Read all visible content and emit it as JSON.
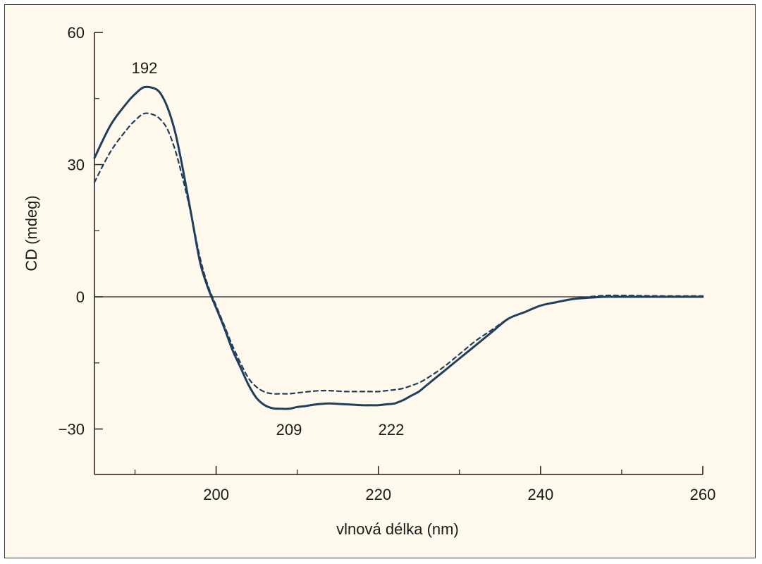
{
  "chart_data": {
    "type": "line",
    "title": "",
    "xlabel": "vlnová délka (nm)",
    "ylabel": "CD (mdeg)",
    "xlim": [
      185,
      260
    ],
    "ylim": [
      -40,
      60
    ],
    "x_ticks": [
      200,
      220,
      240,
      260
    ],
    "x_minor_ticks": [
      190,
      210,
      230,
      250
    ],
    "y_ticks": [
      60,
      30,
      0,
      -30
    ],
    "y_tick_labels": [
      "60",
      "30",
      "0",
      "−30"
    ],
    "y_minor_ticks": [
      45,
      15,
      -15
    ],
    "zero_line": true,
    "grid": false,
    "colors": {
      "line": "#1f3f5c",
      "background": "#fff8ec",
      "axis": "#1a1a1a"
    },
    "series": [
      {
        "style": "solid",
        "x": [
          185,
          187,
          189,
          190,
          191,
          192,
          193,
          194,
          195,
          196,
          197,
          198,
          199,
          200,
          201,
          202,
          203,
          204,
          205,
          206,
          207,
          208,
          209,
          210,
          211,
          212,
          213,
          214,
          215,
          216,
          217,
          218,
          219,
          220,
          221,
          222,
          223,
          224,
          225,
          226,
          228,
          230,
          232,
          234,
          236,
          238,
          240,
          242,
          244,
          246,
          248,
          250,
          255,
          260
        ],
        "y": [
          31.5,
          39,
          44,
          46,
          47.5,
          47.5,
          46.5,
          43,
          37,
          28,
          18,
          8,
          2,
          -2.5,
          -7,
          -12,
          -16,
          -20,
          -23,
          -24.6,
          -25.3,
          -25.4,
          -25.4,
          -25,
          -24.8,
          -24.5,
          -24.3,
          -24.2,
          -24.3,
          -24.4,
          -24.5,
          -24.6,
          -24.6,
          -24.6,
          -24.4,
          -24.2,
          -23.5,
          -22.5,
          -21.5,
          -20,
          -17,
          -14,
          -11,
          -8,
          -5,
          -3.5,
          -2,
          -1.2,
          -0.5,
          -0.2,
          0,
          0,
          0,
          0
        ]
      },
      {
        "style": "dashed",
        "x": [
          185,
          187,
          189,
          190,
          191,
          192,
          193,
          194,
          195,
          196,
          197,
          198,
          199,
          200,
          201,
          202,
          203,
          204,
          205,
          206,
          207,
          208,
          209,
          210,
          211,
          212,
          213,
          214,
          215,
          216,
          217,
          218,
          219,
          220,
          221,
          222,
          223,
          224,
          225,
          226,
          228,
          230,
          232,
          234,
          236,
          238,
          240,
          242,
          244,
          246,
          248,
          250,
          255,
          260
        ],
        "y": [
          26,
          33,
          38,
          40,
          41.5,
          41.5,
          40.5,
          38,
          33,
          26,
          18,
          9,
          2.5,
          -2,
          -6.5,
          -11,
          -15,
          -18.5,
          -20.5,
          -21.6,
          -22,
          -22,
          -22,
          -21.8,
          -21.6,
          -21.4,
          -21.3,
          -21.3,
          -21.4,
          -21.5,
          -21.5,
          -21.5,
          -21.5,
          -21.5,
          -21.3,
          -21.1,
          -20.8,
          -20.2,
          -19.5,
          -18.5,
          -16,
          -13,
          -10,
          -7.5,
          -5,
          -3.5,
          -2,
          -1.2,
          -0.5,
          0,
          0.3,
          0.3,
          0.2,
          0.2
        ]
      }
    ],
    "annotations": [
      {
        "text": "192"
      },
      {
        "text": "209"
      },
      {
        "text": "222"
      }
    ]
  }
}
